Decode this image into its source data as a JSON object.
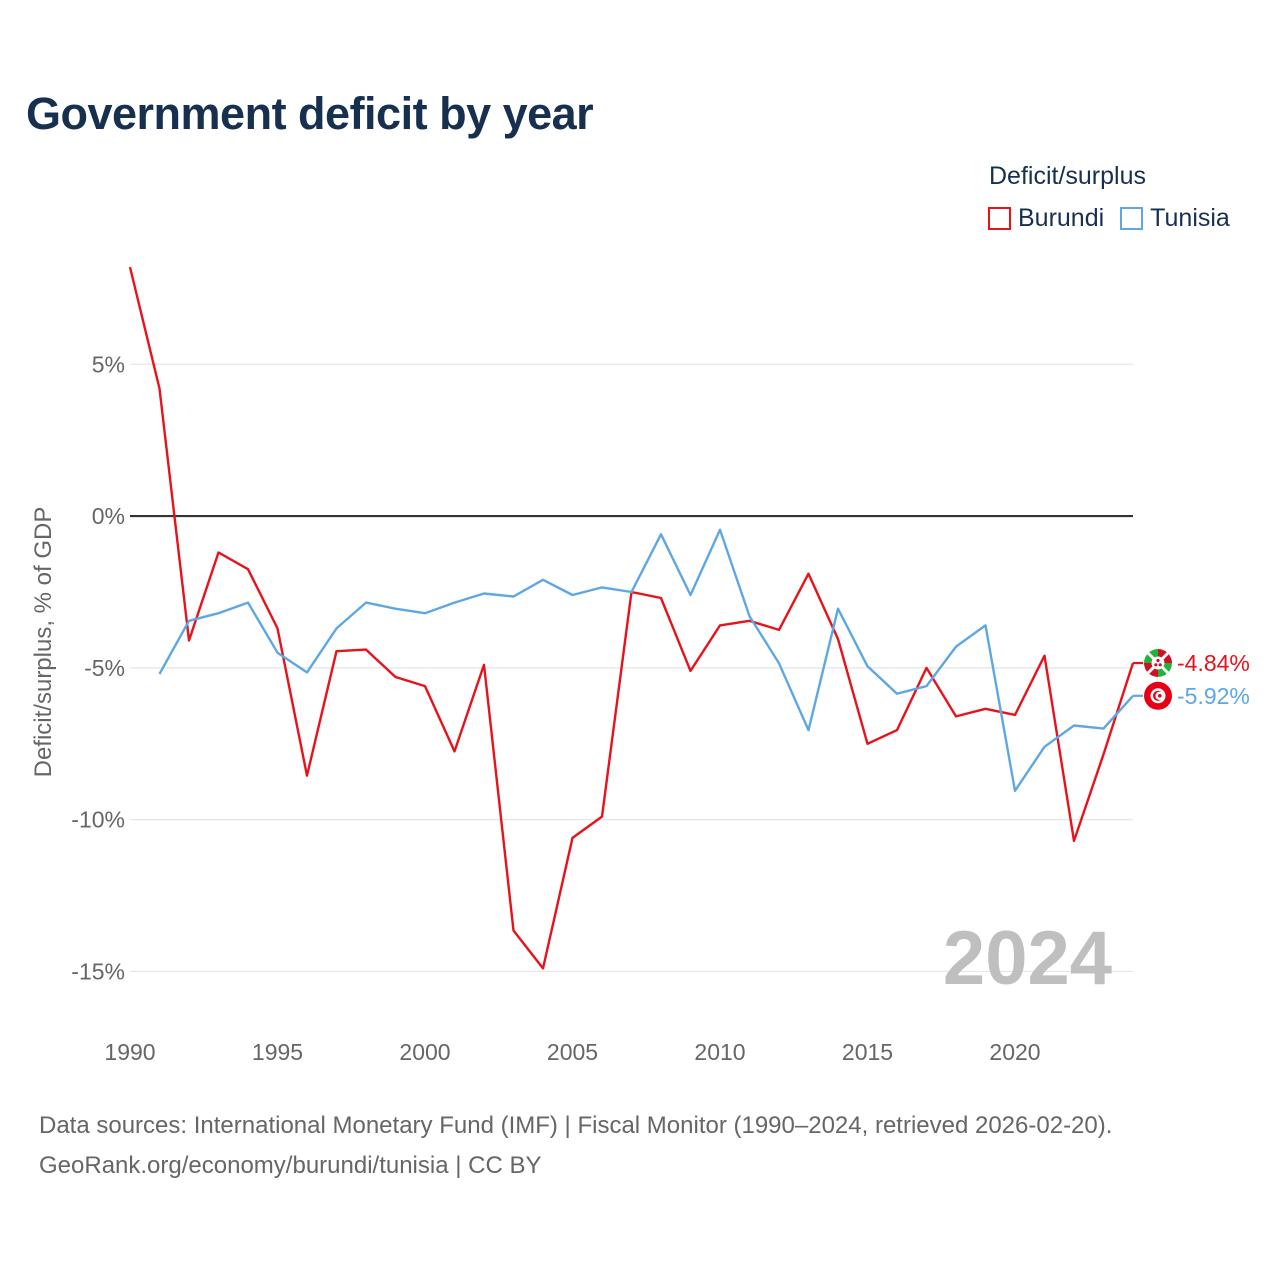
{
  "title": "Government deficit by year",
  "legend": {
    "title": "Deficit/surplus",
    "items": [
      {
        "label": "Burundi",
        "color": "#e8121b"
      },
      {
        "label": "Tunisia",
        "color": "#5fa7e4"
      }
    ]
  },
  "year_label": "2024",
  "source_line1": "Data sources: International Monetary Fund (IMF) | Fiscal Monitor (1990–2024, retrieved 2026-02-20).",
  "source_line2": "GeoRank.org/economy/burundi/tunisia | CC BY",
  "chart_data": {
    "type": "line",
    "title": "Government deficit by year",
    "xlabel": "",
    "ylabel": "Deficit/surplus, % of GDP",
    "xlim": [
      1990,
      2024
    ],
    "ylim": [
      -16.5,
      8.5
    ],
    "x_ticks": [
      1990,
      1995,
      2000,
      2005,
      2010,
      2015,
      2020
    ],
    "y_ticks": [
      5,
      0,
      -5,
      -10,
      -15
    ],
    "y_tick_labels": [
      "5%",
      "0%",
      "-5%",
      "-10%",
      "-15%"
    ],
    "series": [
      {
        "name": "Burundi",
        "color": "#e8121b",
        "end_label": "-4.84%",
        "flag_icon": "burundi-flag-icon",
        "points": [
          [
            1990,
            8.2
          ],
          [
            1991,
            4.2
          ],
          [
            1992,
            -4.1
          ],
          [
            1993,
            -1.2
          ],
          [
            1994,
            -1.75
          ],
          [
            1995,
            -3.7
          ],
          [
            1996,
            -8.55
          ],
          [
            1997,
            -4.45
          ],
          [
            1998,
            -4.4
          ],
          [
            1999,
            -5.3
          ],
          [
            2000,
            -5.6
          ],
          [
            2001,
            -7.75
          ],
          [
            2002,
            -4.9
          ],
          [
            2003,
            -13.65
          ],
          [
            2004,
            -14.9
          ],
          [
            2005,
            -10.6
          ],
          [
            2006,
            -9.9
          ],
          [
            2007,
            -2.5
          ],
          [
            2008,
            -2.7
          ],
          [
            2009,
            -5.1
          ],
          [
            2010,
            -3.6
          ],
          [
            2011,
            -3.45
          ],
          [
            2012,
            -3.75
          ],
          [
            2013,
            -1.9
          ],
          [
            2014,
            -4.05
          ],
          [
            2015,
            -7.5
          ],
          [
            2016,
            -7.05
          ],
          [
            2017,
            -5.0
          ],
          [
            2018,
            -6.6
          ],
          [
            2019,
            -6.35
          ],
          [
            2020,
            -6.55
          ],
          [
            2021,
            -4.6
          ],
          [
            2022,
            -10.7
          ],
          [
            2023,
            -7.85
          ],
          [
            2024,
            -4.84
          ]
        ]
      },
      {
        "name": "Tunisia",
        "color": "#5fa7e4",
        "end_label": "-5.92%",
        "flag_icon": "tunisia-flag-icon",
        "points": [
          [
            1991,
            -5.2
          ],
          [
            1992,
            -3.45
          ],
          [
            1993,
            -3.2
          ],
          [
            1994,
            -2.85
          ],
          [
            1995,
            -4.5
          ],
          [
            1996,
            -5.15
          ],
          [
            1997,
            -3.7
          ],
          [
            1998,
            -2.85
          ],
          [
            1999,
            -3.05
          ],
          [
            2000,
            -3.2
          ],
          [
            2001,
            -2.85
          ],
          [
            2002,
            -2.55
          ],
          [
            2003,
            -2.65
          ],
          [
            2004,
            -2.1
          ],
          [
            2005,
            -2.6
          ],
          [
            2006,
            -2.35
          ],
          [
            2007,
            -2.5
          ],
          [
            2008,
            -0.6
          ],
          [
            2009,
            -2.6
          ],
          [
            2010,
            -0.45
          ],
          [
            2011,
            -3.3
          ],
          [
            2012,
            -4.85
          ],
          [
            2013,
            -7.05
          ],
          [
            2014,
            -3.05
          ],
          [
            2015,
            -4.95
          ],
          [
            2016,
            -5.85
          ],
          [
            2017,
            -5.6
          ],
          [
            2018,
            -4.3
          ],
          [
            2019,
            -3.6
          ],
          [
            2020,
            -9.05
          ],
          [
            2021,
            -7.6
          ],
          [
            2022,
            -6.9
          ],
          [
            2023,
            -7.0
          ],
          [
            2024,
            -5.92
          ]
        ]
      }
    ]
  }
}
